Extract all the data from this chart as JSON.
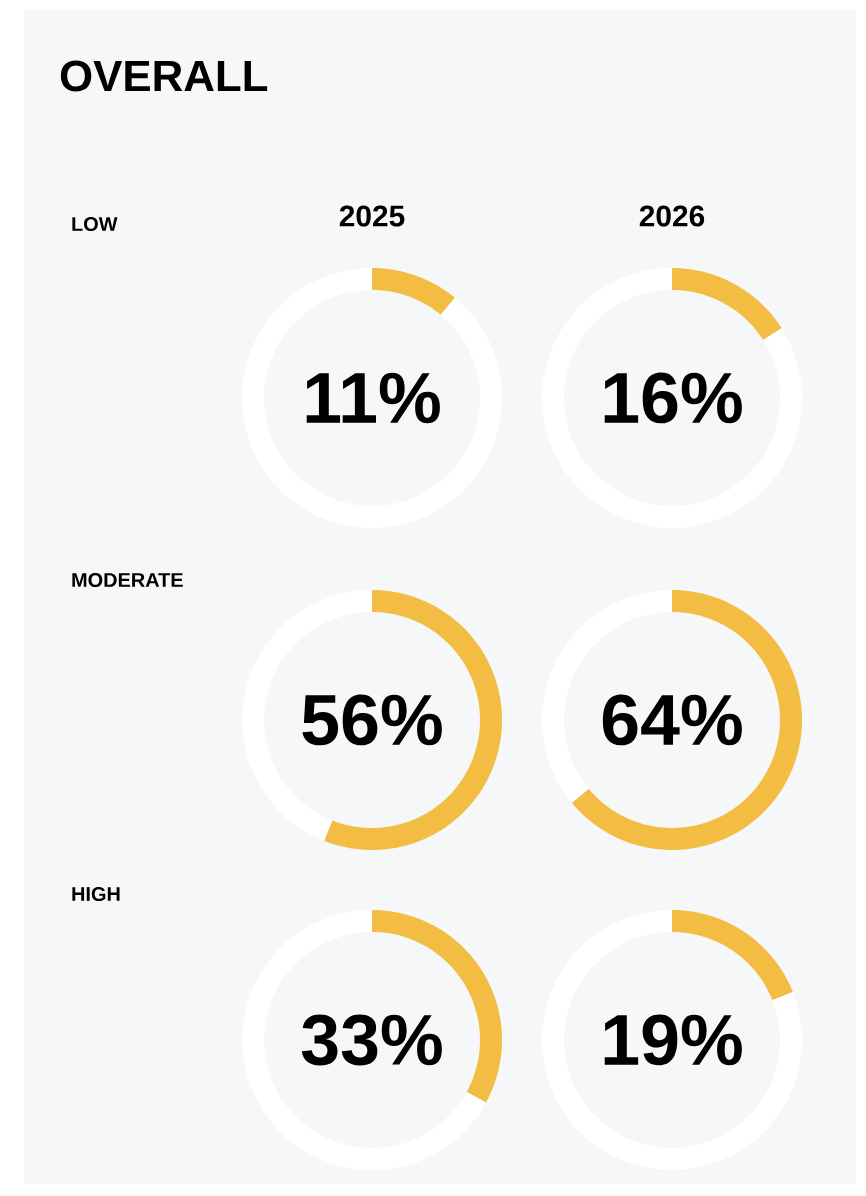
{
  "chart_data": [
    {
      "type": "other",
      "title": "OVERALL",
      "annotations": [
        "LOW",
        "MODERATE",
        "HIGH",
        "2025",
        "2026"
      ]
    },
    {
      "type": "donut",
      "categories": [
        null,
        null
      ],
      "values": [
        11,
        89
      ],
      "colors": [
        "#f2bd42",
        "#ffffff"
      ],
      "annotations": [
        "11%"
      ]
    },
    {
      "type": "donut",
      "categories": [
        null,
        null
      ],
      "values": [
        16,
        84
      ],
      "colors": [
        "#f2bd42",
        "#ffffff"
      ],
      "annotations": [
        "16%"
      ]
    },
    {
      "type": "donut",
      "categories": [
        null,
        null
      ],
      "values": [
        56,
        44
      ],
      "colors": [
        "#f2bd42",
        "#ffffff"
      ],
      "annotations": [
        "56%"
      ]
    },
    {
      "type": "donut",
      "categories": [
        null,
        null
      ],
      "values": [
        64,
        36
      ],
      "colors": [
        "#f2bd42",
        "#ffffff"
      ],
      "annotations": [
        "64%"
      ]
    },
    {
      "type": "donut",
      "categories": [
        null,
        null
      ],
      "values": [
        33,
        67
      ],
      "colors": [
        "#f2bd42",
        "#ffffff"
      ],
      "annotations": [
        "33%"
      ]
    },
    {
      "type": "donut",
      "categories": [
        null,
        null
      ],
      "values": [
        19,
        81
      ],
      "colors": [
        "#f2bd42",
        "#ffffff"
      ],
      "annotations": [
        "19%"
      ]
    }
  ]
}
